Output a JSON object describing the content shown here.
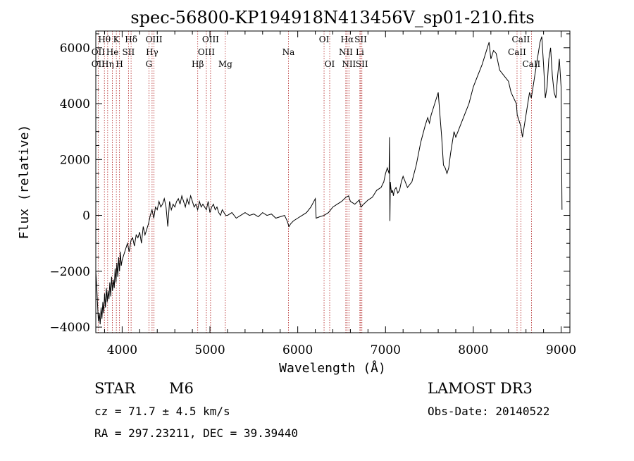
{
  "page": {
    "title": "spec-56800-KP194918N413456V_sp01-210.fits"
  },
  "info": {
    "class": "STAR",
    "subclass": "M6",
    "survey": "LAMOST DR3",
    "cz": "cz = 71.7 ± 4.5 km/s",
    "obs_date": "Obs-Date: 20140522",
    "radec": "RA = 297.23211, DEC =  39.39440"
  },
  "colors": {
    "spectrum": "#000000",
    "line_marker": "#b22222",
    "frame": "#000000"
  },
  "chart_data": {
    "type": "line",
    "title": "spec-56800-KP194918N413456V_sp01-210.fits",
    "xlabel": "Wavelength (Å)",
    "ylabel": "Flux (relative)",
    "xlim": [
      3700,
      9100
    ],
    "ylim": [
      -4200,
      6600
    ],
    "xticks": [
      4000,
      5000,
      6000,
      7000,
      8000,
      9000
    ],
    "yticks": [
      -4000,
      -2000,
      0,
      2000,
      4000,
      6000
    ],
    "grid": false,
    "series": [
      {
        "x": [
          3700,
          3710,
          3720,
          3730,
          3740,
          3750,
          3760,
          3770,
          3780,
          3790,
          3800,
          3810,
          3820,
          3830,
          3840,
          3850,
          3860,
          3870,
          3880,
          3890,
          3900,
          3910,
          3920,
          3930,
          3940,
          3950,
          3960,
          3970,
          3980,
          3990,
          4000,
          4020,
          4040,
          4060,
          4080,
          4100,
          4120,
          4140,
          4160,
          4180,
          4200,
          4220,
          4240,
          4260,
          4280,
          4300,
          4320,
          4340,
          4360,
          4380,
          4400,
          4420,
          4440,
          4460,
          4480,
          4500,
          4520,
          4540,
          4560,
          4580,
          4600,
          4620,
          4640,
          4660,
          4680,
          4700,
          4720,
          4740,
          4760,
          4780,
          4800,
          4820,
          4840,
          4860,
          4880,
          4900,
          4920,
          4940,
          4960,
          4980,
          5000,
          5020,
          5040,
          5060,
          5080,
          5100,
          5120,
          5140,
          5160,
          5180,
          5200,
          5250,
          5300,
          5350,
          5400,
          5450,
          5500,
          5550,
          5600,
          5650,
          5700,
          5750,
          5800,
          5850,
          5880,
          5900,
          5920,
          5950,
          6000,
          6050,
          6100,
          6150,
          6200,
          6210,
          6250,
          6300,
          6350,
          6400,
          6450,
          6500,
          6550,
          6580,
          6600,
          6650,
          6700,
          6720,
          6750,
          6800,
          6850,
          6900,
          6950,
          6980,
          7000,
          7020,
          7040,
          7045,
          7050,
          7055,
          7060,
          7070,
          7080,
          7090,
          7100,
          7120,
          7140,
          7160,
          7180,
          7200,
          7250,
          7300,
          7350,
          7400,
          7450,
          7480,
          7500,
          7520,
          7540,
          7560,
          7580,
          7600,
          7620,
          7640,
          7660,
          7680,
          7700,
          7720,
          7740,
          7760,
          7780,
          7800,
          7850,
          7900,
          7950,
          8000,
          8050,
          8100,
          8150,
          8180,
          8200,
          8230,
          8260,
          8300,
          8350,
          8400,
          8430,
          8460,
          8490,
          8500,
          8520,
          8540,
          8560,
          8580,
          8600,
          8620,
          8640,
          8660,
          8680,
          8700,
          8720,
          8740,
          8760,
          8780,
          8800,
          8820,
          8840,
          8860,
          8880,
          8900,
          8920,
          8940,
          8960,
          8980,
          9000,
          9010
        ],
        "y": [
          -2000,
          -2500,
          -3200,
          -3800,
          -3500,
          -3900,
          -3300,
          -3700,
          -3100,
          -3500,
          -2800,
          -3300,
          -2600,
          -3100,
          -2700,
          -3000,
          -2400,
          -2900,
          -2200,
          -2700,
          -2300,
          -2600,
          -1900,
          -2400,
          -1700,
          -2200,
          -1500,
          -2000,
          -1300,
          -1800,
          -1600,
          -1400,
          -1200,
          -1000,
          -1300,
          -900,
          -800,
          -1100,
          -700,
          -800,
          -600,
          -1000,
          -400,
          -700,
          -500,
          -300,
          0,
          200,
          -100,
          300,
          200,
          500,
          300,
          400,
          600,
          300,
          -400,
          500,
          200,
          400,
          300,
          500,
          600,
          400,
          700,
          500,
          300,
          600,
          400,
          700,
          500,
          300,
          400,
          200,
          500,
          300,
          400,
          300,
          200,
          500,
          100,
          300,
          400,
          200,
          300,
          100,
          0,
          200,
          100,
          0,
          0,
          100,
          -100,
          0,
          100,
          0,
          50,
          -50,
          100,
          0,
          50,
          -100,
          -50,
          0,
          -200,
          -400,
          -300,
          -200,
          -100,
          0,
          100,
          300,
          600,
          -100,
          -50,
          0,
          100,
          300,
          400,
          500,
          650,
          700,
          500,
          400,
          550,
          300,
          400,
          550,
          650,
          900,
          1000,
          1200,
          1500,
          1700,
          1500,
          2800,
          -200,
          1200,
          1000,
          800,
          900,
          700,
          900,
          1000,
          800,
          900,
          1200,
          1400,
          1000,
          1200,
          1800,
          2600,
          3200,
          3500,
          3300,
          3600,
          3800,
          4000,
          4200,
          4400,
          3600,
          2800,
          1800,
          1700,
          1500,
          1700,
          2200,
          2600,
          3000,
          2800,
          3200,
          3600,
          4000,
          4600,
          5000,
          5400,
          5900,
          6200,
          5600,
          5900,
          5800,
          5200,
          5000,
          4800,
          4400,
          4200,
          4000,
          3600,
          3400,
          3200,
          2800,
          3200,
          3600,
          4000,
          4400,
          4200,
          4600,
          5000,
          5400,
          5800,
          6200,
          6400,
          5400,
          4200,
          4600,
          5600,
          6000,
          5000,
          4400,
          4200,
          5000,
          5600,
          4600,
          200
        ]
      }
    ],
    "markers_label": "dotted vertical lines mark spectral features",
    "line_markers": [
      {
        "label": "Hθ",
        "x": 3798,
        "row": 0
      },
      {
        "label": "OII",
        "x": 3727,
        "row": 1
      },
      {
        "label": "OII",
        "x": 3727,
        "row": 2
      },
      {
        "label": "K",
        "x": 3934,
        "row": 0
      },
      {
        "label": "He",
        "x": 3889,
        "row": 1
      },
      {
        "label": "Hη",
        "x": 3835,
        "row": 2
      },
      {
        "label": "H",
        "x": 3970,
        "row": 2
      },
      {
        "label": "Hδ",
        "x": 4102,
        "row": 0
      },
      {
        "label": "SII",
        "x": 4072,
        "row": 1
      },
      {
        "label": "OIII",
        "x": 4363,
        "row": 0
      },
      {
        "label": "Hγ",
        "x": 4341,
        "row": 1
      },
      {
        "label": "G",
        "x": 4305,
        "row": 2
      },
      {
        "label": "Hβ",
        "x": 4861,
        "row": 2
      },
      {
        "label": "OIII",
        "x": 5007,
        "row": 0
      },
      {
        "label": "OIII",
        "x": 4959,
        "row": 1
      },
      {
        "label": "Mg",
        "x": 5175,
        "row": 2
      },
      {
        "label": "Na",
        "x": 5894,
        "row": 1
      },
      {
        "label": "OI",
        "x": 6300,
        "row": 0
      },
      {
        "label": "OI",
        "x": 6364,
        "row": 2
      },
      {
        "label": "Hα",
        "x": 6563,
        "row": 0
      },
      {
        "label": "SII",
        "x": 6717,
        "row": 0
      },
      {
        "label": "NII",
        "x": 6548,
        "row": 1
      },
      {
        "label": "Li",
        "x": 6708,
        "row": 1
      },
      {
        "label": "NII",
        "x": 6583,
        "row": 2
      },
      {
        "label": "SII",
        "x": 6731,
        "row": 2
      },
      {
        "label": "CaII",
        "x": 8542,
        "row": 0
      },
      {
        "label": "CaII",
        "x": 8498,
        "row": 1
      },
      {
        "label": "CaII",
        "x": 8662,
        "row": 2
      }
    ]
  }
}
